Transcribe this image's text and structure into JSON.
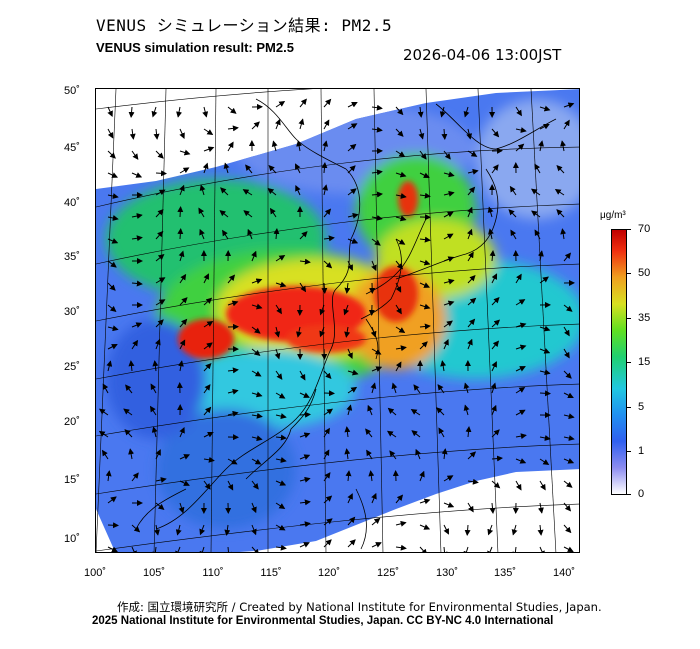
{
  "title_jp": "VENUS シミュレーション結果: PM2.5",
  "title_en": "VENUS simulation result: PM2.5",
  "timestamp": "2026-04-06 13:00JST",
  "map": {
    "lat_labels": [
      "50˚",
      "45˚",
      "40˚",
      "35˚",
      "30˚",
      "25˚",
      "20˚",
      "15˚",
      "10˚"
    ],
    "lon_labels": [
      "100˚",
      "105˚",
      "110˚",
      "115˚",
      "120˚",
      "125˚",
      "130˚",
      "135˚",
      "140˚"
    ]
  },
  "colorbar": {
    "unit": "μg/m³",
    "levels": [
      "70",
      "50",
      "35",
      "15",
      "5",
      "1",
      "0"
    ],
    "colors": [
      "#c00000",
      "#f0a020",
      "#d8e020",
      "#20d070",
      "#2090f0",
      "#8c8cf0",
      "#ffffff"
    ]
  },
  "credits": {
    "line1": "作成: 国立環境研究所 / Created by National Institute for Environmental Studies, Japan.",
    "line2": "2025 National Institute for Environmental Studies, Japan. CC BY-NC 4.0 International"
  }
}
